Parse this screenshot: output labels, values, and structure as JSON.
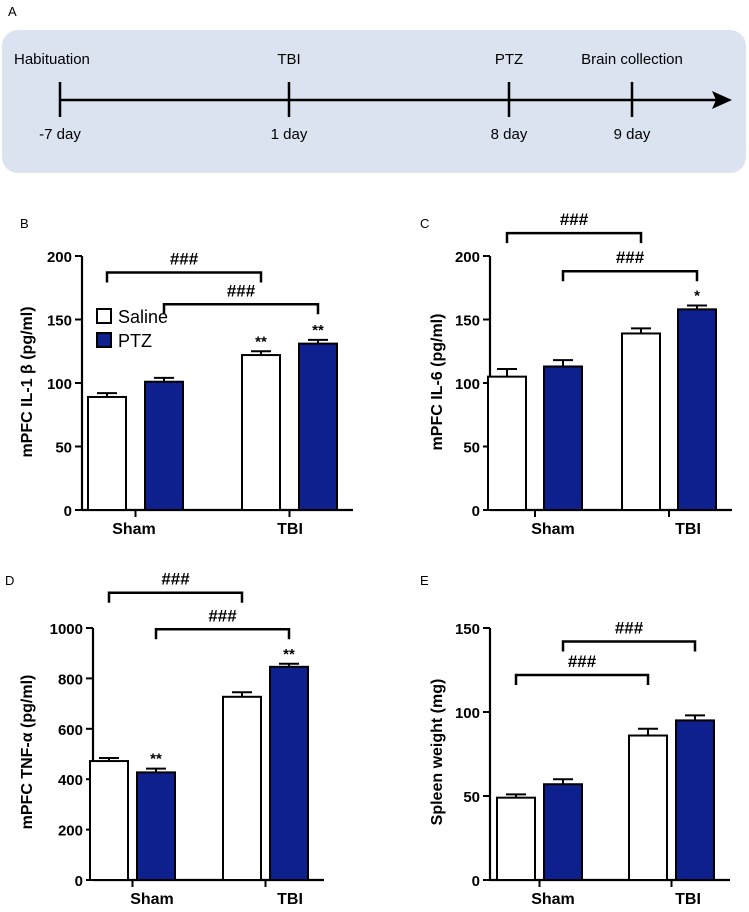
{
  "colors": {
    "timeline_bg": "#dbe3f1",
    "saline_fill": "#ffffff",
    "ptz_fill": "#0e1f8e",
    "ink": "#000000"
  },
  "panel_a": {
    "letter": "A",
    "events": [
      {
        "name": "Habituation",
        "day": "-7 day"
      },
      {
        "name": "TBI",
        "day": "1 day"
      },
      {
        "name": "PTZ",
        "day": "8 day"
      },
      {
        "name": "Brain collection",
        "day": "9 day"
      }
    ]
  },
  "chart_data": [
    {
      "panel": "B",
      "type": "bar",
      "ylabel": "mPFC IL-1 β (pg/ml)",
      "categories": [
        "Sham",
        "TBI"
      ],
      "ylim": [
        0,
        200
      ],
      "yticks": [
        0,
        50,
        100,
        150,
        200
      ],
      "series": [
        {
          "name": "Saline",
          "values": [
            89,
            122
          ],
          "errors": [
            3,
            3
          ]
        },
        {
          "name": "PTZ",
          "values": [
            101,
            131
          ],
          "errors": [
            3,
            3
          ]
        }
      ],
      "stars": [
        "",
        "",
        "**",
        "**"
      ],
      "legend": [
        "Saline",
        "PTZ"
      ],
      "brackets": [
        {
          "label": "###",
          "from": 0,
          "to": 2,
          "level": 187
        },
        {
          "label": "###",
          "from": 1,
          "to": 3,
          "level": 162
        }
      ]
    },
    {
      "panel": "C",
      "type": "bar",
      "ylabel": "mPFC IL-6 (pg/ml)",
      "categories": [
        "Sham",
        "TBI"
      ],
      "ylim": [
        0,
        200
      ],
      "yticks": [
        0,
        50,
        100,
        150,
        200
      ],
      "series": [
        {
          "name": "Saline",
          "values": [
            105,
            139
          ],
          "errors": [
            6,
            4
          ]
        },
        {
          "name": "PTZ",
          "values": [
            113,
            158
          ],
          "errors": [
            5,
            3
          ]
        }
      ],
      "stars": [
        "",
        "",
        "",
        "*"
      ],
      "brackets": [
        {
          "label": "###",
          "from": 0,
          "to": 2,
          "level": 218
        },
        {
          "label": "###",
          "from": 1,
          "to": 3,
          "level": 188
        }
      ]
    },
    {
      "panel": "D",
      "type": "bar",
      "ylabel": "mPFC TNF-α (pg/ml)",
      "categories": [
        "Sham",
        "TBI"
      ],
      "ylim": [
        0,
        1000
      ],
      "yticks": [
        0,
        200,
        400,
        600,
        800,
        1000
      ],
      "series": [
        {
          "name": "Saline",
          "values": [
            472,
            727
          ],
          "errors": [
            12,
            18
          ]
        },
        {
          "name": "PTZ",
          "values": [
            427,
            846
          ],
          "errors": [
            15,
            12
          ]
        }
      ],
      "stars": [
        "",
        "**",
        "",
        "**"
      ],
      "brackets": [
        {
          "label": "###",
          "from": 0,
          "to": 2,
          "level": 1140
        },
        {
          "label": "###",
          "from": 1,
          "to": 3,
          "level": 995
        }
      ]
    },
    {
      "panel": "E",
      "type": "bar",
      "ylabel": "Spleen weight (mg)",
      "categories": [
        "Sham",
        "TBI"
      ],
      "ylim": [
        0,
        150
      ],
      "yticks": [
        0,
        50,
        100,
        150
      ],
      "series": [
        {
          "name": "Saline",
          "values": [
            49,
            86
          ],
          "errors": [
            2,
            4
          ]
        },
        {
          "name": "PTZ",
          "values": [
            57,
            95
          ],
          "errors": [
            3,
            3
          ]
        }
      ],
      "stars": [
        "",
        "",
        "",
        ""
      ],
      "brackets": [
        {
          "label": "###",
          "from": 0,
          "to": 2,
          "level": 122
        },
        {
          "label": "###",
          "from": 1,
          "to": 3,
          "level": 142
        }
      ]
    }
  ]
}
